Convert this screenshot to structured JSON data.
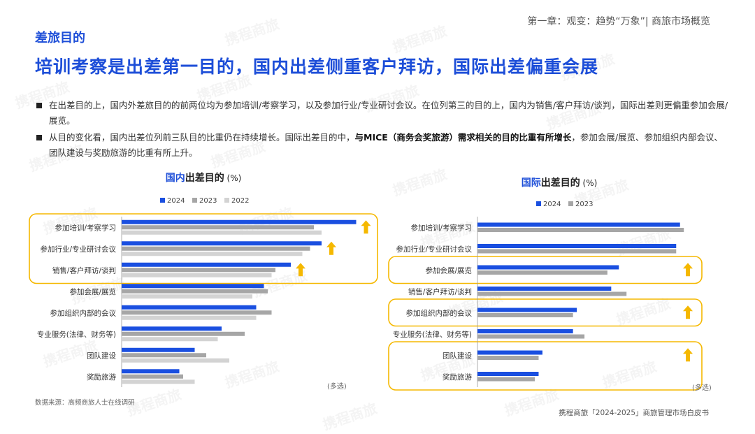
{
  "header": {
    "chapter": "第一章：观变：趋势“万象”| 商旅市场概览"
  },
  "section_tag": "差旅目的",
  "headline": "培训考察是出差第一目的，国内出差侧重客户拜访，国际出差偏重会展",
  "bullets": [
    {
      "parts": [
        {
          "text": "在出差目的上，国内外差旅目的的前两位均为参加培训/考察学习，以及参加行业/专业研讨会议。在位列第三的目的上，国内为销售/客户拜访/谈判，国际出差则更偏重参加会展/展览。",
          "bold": false
        }
      ]
    },
    {
      "parts": [
        {
          "text": "从目的变化看，国内出差位列前三队目的比重仍在持续增长。国际出差目的中，",
          "bold": false
        },
        {
          "text": "与MICE（商务会奖旅游）需求相关的目的比重有所增长",
          "bold": true
        },
        {
          "text": "，参加会展/展览、参加组织内部会议、团队建设与奖励旅游的比重有所上升。",
          "bold": false
        }
      ]
    }
  ],
  "watermark": "携程商旅",
  "colors": {
    "y2024": "#1a4fe0",
    "y2023": "#a6a6a6",
    "y2022": "#d3d3d3",
    "highlight": "#f5b800",
    "arrow": "#f5b800",
    "title_accent": "#1d4ed8"
  },
  "chart_data": [
    {
      "type": "bar",
      "orientation": "horizontal",
      "title_highlight": "国内",
      "title_rest": "出差目的",
      "title_unit": "(%)",
      "categories": [
        "参加培训/考察学习",
        "参加行业/专业研讨会议",
        "销售/客户拜访/谈判",
        "参加会展/展览",
        "参加组织内部的会议",
        "专业服务(法律、财务等)",
        "团队建设",
        "奖励旅游"
      ],
      "series": [
        {
          "name": "2024",
          "values": [
            61,
            52,
            44,
            37,
            35,
            26,
            19,
            15
          ]
        },
        {
          "name": "2023",
          "values": [
            50,
            49,
            40,
            38,
            39,
            32,
            22,
            16
          ]
        },
        {
          "name": "2022",
          "values": [
            52,
            47,
            39,
            34,
            35,
            25,
            28,
            19
          ]
        }
      ],
      "xlim": [
        0,
        70
      ],
      "highlight_groups": [
        [
          0,
          2
        ]
      ],
      "up_arrows": [
        0,
        1,
        2
      ],
      "note": "(多选)"
    },
    {
      "type": "bar",
      "orientation": "horizontal",
      "title_highlight": "国际",
      "title_rest": "出差目的",
      "title_unit": "(%)",
      "categories": [
        "参加培训/考察学习",
        "参加行业/专业研讨会议",
        "参加会展/展览",
        "销售/客户拜访/谈判",
        "参加组织内部的会议",
        "专业服务(法律、财务等)",
        "团队建设",
        "奖励旅游"
      ],
      "series": [
        {
          "name": "2024",
          "values": [
            53,
            52,
            37,
            35,
            26,
            25,
            17,
            16
          ]
        },
        {
          "name": "2023",
          "values": [
            54,
            52,
            34,
            39,
            25,
            28,
            16,
            15
          ]
        }
      ],
      "xlim": [
        0,
        60
      ],
      "highlight_groups": [
        [
          2,
          2
        ],
        [
          4,
          4
        ],
        [
          6,
          7
        ]
      ],
      "up_arrows": [
        2,
        4,
        6
      ],
      "note": "(多选)"
    }
  ],
  "source": "数据来源：高频商旅人士在线调研",
  "footer": "携程商旅「2024-2025」商旅管理市场白皮书"
}
